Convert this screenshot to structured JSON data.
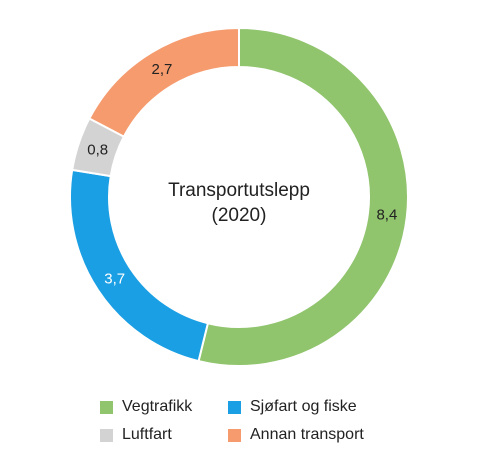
{
  "chart_data": {
    "type": "pie",
    "title": "Transportutslepp",
    "subtitle": "(2020)",
    "slices": [
      {
        "name": "Vegtrafikk",
        "value": 8.4,
        "label": "8,4",
        "color": "#90c46d",
        "label_color": "#222222"
      },
      {
        "name": "Sjøfart og fiske",
        "value": 3.7,
        "label": "3,7",
        "color": "#1a9fe4",
        "label_color": "#ffffff"
      },
      {
        "name": "Luftfart",
        "value": 0.8,
        "label": "0,8",
        "color": "#d3d3d3",
        "label_color": "#222222"
      },
      {
        "name": "Annan transport",
        "value": 2.7,
        "label": "2,7",
        "color": "#f59b6e",
        "label_color": "#222222"
      }
    ],
    "start": "top",
    "direction": "clockwise",
    "legend_position": "bottom",
    "legend": [
      {
        "name": "Vegtrafikk",
        "color": "#90c46d"
      },
      {
        "name": "Sjøfart og fiske",
        "color": "#1a9fe4"
      },
      {
        "name": "Luftfart",
        "color": "#d3d3d3"
      },
      {
        "name": "Annan transport",
        "color": "#f59b6e"
      }
    ]
  }
}
